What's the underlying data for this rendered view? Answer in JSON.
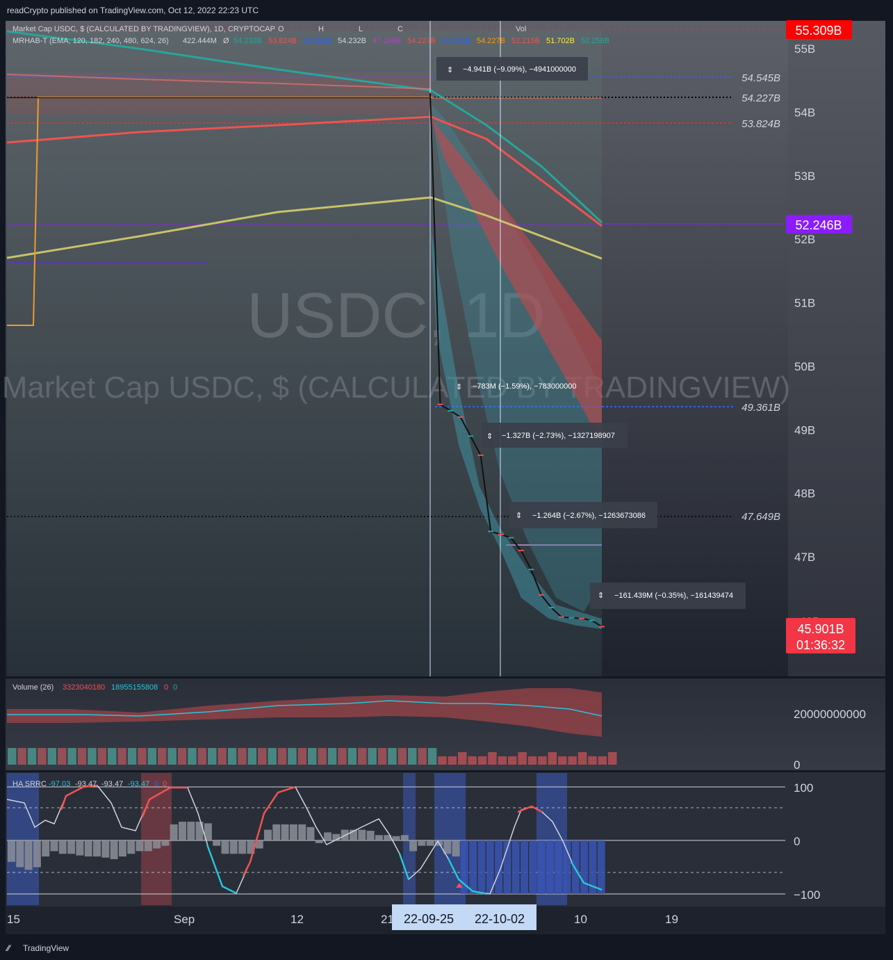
{
  "header": {
    "publish_line": "readCrypto published on TradingView.com, Oct 12, 2022 22:23 UTC"
  },
  "legend": {
    "main_line": "Market Cap USDC, $ (CALCULATED BY TRADINGVIEW), 1D, CRYPTOCAP",
    "ohlc_labels": [
      "O",
      "H",
      "L",
      "C"
    ],
    "vol_label": "Vol",
    "ema_name": "MRHAB-T (EMA, 120, 182, 240, 480, 624, 26)",
    "ema_value1": "422.444M",
    "ema_symbol": "Ø",
    "ema_values": [
      {
        "text": "54.232B",
        "color": "#26a69a"
      },
      {
        "text": "53.824B",
        "color": "#ef5350"
      },
      {
        "text": "49.361B",
        "color": "#2962ff"
      },
      {
        "text": "54.232B",
        "color": "#d1d4dc"
      },
      {
        "text": "47.196B",
        "color": "#ab47bc"
      },
      {
        "text": "54.227B",
        "color": "#ef5350"
      },
      {
        "text": "54.545B",
        "color": "#2962ff"
      },
      {
        "text": "54.227B",
        "color": "#ff9800"
      },
      {
        "text": "52.215B",
        "color": "#ef5350"
      },
      {
        "text": "51.702B",
        "color": "#ffeb3b"
      },
      {
        "text": "52.256B",
        "color": "#26a69a"
      }
    ]
  },
  "watermark": {
    "symbol": "USDC, 1D",
    "name": "Market Cap USDC, $ (CALCULATED BY TRADINGVIEW)"
  },
  "price_axis": {
    "ticks": [
      "55B",
      "54B",
      "53B",
      "52B",
      "51B",
      "50B",
      "49B",
      "48B",
      "47B"
    ],
    "top_badge": {
      "text": "55.309B",
      "color": "#ff0000"
    },
    "purple_badge": {
      "text": "52.246B",
      "color": "#8a1cff"
    },
    "last_badge_price": "45.901B",
    "last_badge_timer": "01:36:32",
    "last_badge_color": "#f23645",
    "partial_tick": "46B"
  },
  "level_labels": [
    {
      "text": "54.545B"
    },
    {
      "text": "54.227B"
    },
    {
      "text": "53.824B"
    },
    {
      "text": "49.361B"
    },
    {
      "text": "47.649B"
    }
  ],
  "measure_boxes": [
    {
      "text": "−4.941B (−9.09%), −4941000000"
    },
    {
      "text": "−783M (−1.59%), −783000000"
    },
    {
      "text": "−1.327B (−2.73%), −1327198907"
    },
    {
      "text": "−1.264B (−2.67%), −1263673086"
    },
    {
      "text": "−161.439M (−0.35%), −161439474"
    }
  ],
  "volume_pane": {
    "title": "Volume (26)",
    "value1": "3323040180",
    "value2": "18955155808",
    "zero1": "0",
    "zero2": "0",
    "axis_ticks": [
      "20000000000",
      "0"
    ]
  },
  "ha_pane": {
    "title": "HA SRRC",
    "values": [
      {
        "text": "-97.03",
        "color": "#26c6da"
      },
      {
        "text": "-93.47",
        "color": "#d1d4dc"
      },
      {
        "text": "-93.47",
        "color": "#d1d4dc"
      },
      {
        "text": "-93.47",
        "color": "#26c6da"
      },
      {
        "text": "0",
        "color": "#2962ff"
      },
      {
        "text": "0",
        "color": "#ef5350"
      }
    ],
    "axis_ticks": [
      "100",
      "0",
      "−100"
    ]
  },
  "time_axis": {
    "ticks": [
      "15",
      "Sep",
      "12",
      "21",
      "10",
      "19"
    ],
    "crosshair_labels": [
      "22-09-25",
      "22-10-02"
    ]
  },
  "footer": {
    "brand": "TradingView"
  },
  "chart_data": {
    "type": "line",
    "title": "Market Cap USDC, $ (CALCULATED BY TRADINGVIEW), 1D, CRYPTOCAP",
    "x": [
      "22-09-25",
      "22-09-26",
      "22-09-27",
      "22-09-28",
      "22-09-29",
      "22-09-30",
      "22-10-01",
      "22-10-02",
      "22-10-03",
      "22-10-04",
      "22-10-05",
      "22-10-06",
      "22-10-07",
      "22-10-08",
      "22-10-09",
      "22-10-10",
      "22-10-11",
      "22-10-12"
    ],
    "series": [
      {
        "values": [
          54.3,
          49.4,
          49.3,
          49.2,
          48.9,
          48.6,
          47.4,
          47.35,
          47.3,
          47.1,
          46.8,
          46.4,
          46.2,
          46.05,
          46.04,
          46.03,
          46.0,
          45.9
        ]
      }
    ],
    "ylim": [
      45.6,
      55.5
    ],
    "horizontal_levels": [
      55.309,
      54.545,
      54.227,
      53.824,
      52.246,
      49.361,
      47.649
    ],
    "last_value": 45.901
  }
}
